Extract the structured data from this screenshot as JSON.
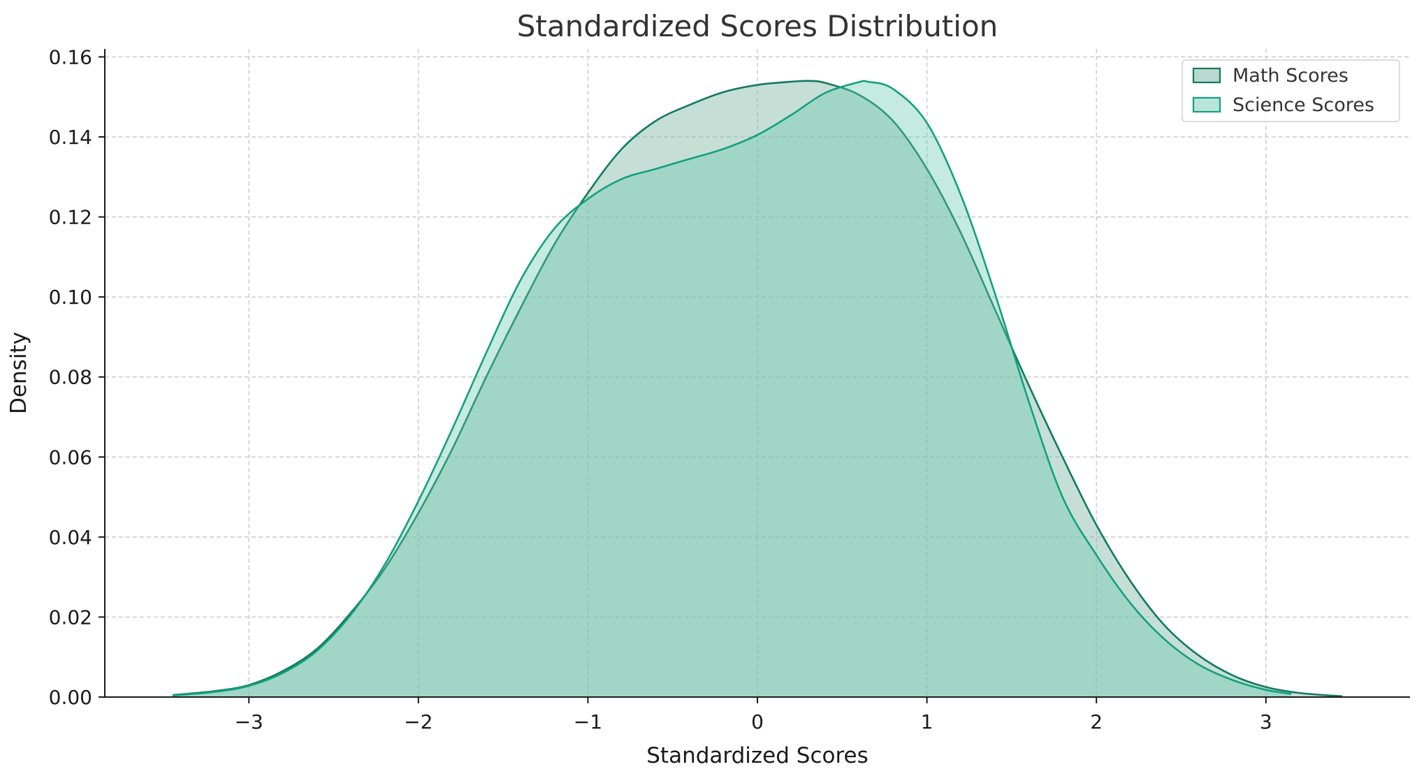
{
  "chart_data": {
    "type": "area",
    "title": "Standardized Scores Distribution",
    "xlabel": "Standardized Scores",
    "ylabel": "Density",
    "xlim": [
      -3.85,
      3.85
    ],
    "ylim": [
      0,
      0.162
    ],
    "x_ticks": [
      -3,
      -2,
      -1,
      0,
      1,
      2,
      3
    ],
    "x_tick_labels": [
      "−3",
      "−2",
      "−1",
      "0",
      "1",
      "2",
      "3"
    ],
    "y_ticks": [
      0,
      0.02,
      0.04,
      0.06,
      0.08,
      0.1,
      0.12,
      0.14,
      0.16
    ],
    "y_tick_labels": [
      "0.00",
      "0.02",
      "0.04",
      "0.06",
      "0.08",
      "0.10",
      "0.12",
      "0.14",
      "0.16"
    ],
    "grid": true,
    "legend_position": "top-right",
    "series": [
      {
        "name": "Math Scores",
        "line_color": "#117a5e",
        "fill_color": "#7fb9a6",
        "fill_opacity": 0.45,
        "x": [
          -3.45,
          -3.2,
          -3.0,
          -2.8,
          -2.6,
          -2.4,
          -2.2,
          -2.0,
          -1.8,
          -1.6,
          -1.4,
          -1.2,
          -1.0,
          -0.8,
          -0.6,
          -0.4,
          -0.2,
          0.0,
          0.2,
          0.3,
          0.4,
          0.6,
          0.8,
          1.0,
          1.2,
          1.4,
          1.6,
          1.8,
          2.0,
          2.2,
          2.4,
          2.6,
          2.8,
          3.0,
          3.2,
          3.45
        ],
        "y": [
          0.0005,
          0.0015,
          0.003,
          0.0065,
          0.012,
          0.021,
          0.032,
          0.046,
          0.062,
          0.08,
          0.097,
          0.113,
          0.126,
          0.137,
          0.144,
          0.148,
          0.1512,
          0.153,
          0.1538,
          0.154,
          0.1535,
          0.1505,
          0.144,
          0.132,
          0.116,
          0.097,
          0.078,
          0.06,
          0.043,
          0.029,
          0.018,
          0.0105,
          0.0055,
          0.0025,
          0.001,
          0.0002
        ]
      },
      {
        "name": "Science Scores",
        "line_color": "#12a07e",
        "fill_color": "#66c8ae",
        "fill_opacity": 0.38,
        "x": [
          -3.45,
          -3.2,
          -3.0,
          -2.8,
          -2.6,
          -2.4,
          -2.2,
          -2.0,
          -1.8,
          -1.6,
          -1.4,
          -1.2,
          -1.0,
          -0.8,
          -0.6,
          -0.4,
          -0.2,
          0.0,
          0.2,
          0.4,
          0.6,
          0.65,
          0.8,
          1.0,
          1.2,
          1.4,
          1.6,
          1.8,
          2.0,
          2.2,
          2.4,
          2.6,
          2.8,
          3.0,
          3.15
        ],
        "y": [
          0.0004,
          0.0013,
          0.0028,
          0.006,
          0.0115,
          0.0205,
          0.033,
          0.049,
          0.067,
          0.086,
          0.104,
          0.117,
          0.1245,
          0.1295,
          0.132,
          0.1345,
          0.137,
          0.1405,
          0.1455,
          0.151,
          0.1537,
          0.1538,
          0.152,
          0.1435,
          0.1255,
          0.101,
          0.074,
          0.05,
          0.0355,
          0.0235,
          0.0145,
          0.0082,
          0.0043,
          0.0018,
          0.0008
        ]
      }
    ]
  }
}
